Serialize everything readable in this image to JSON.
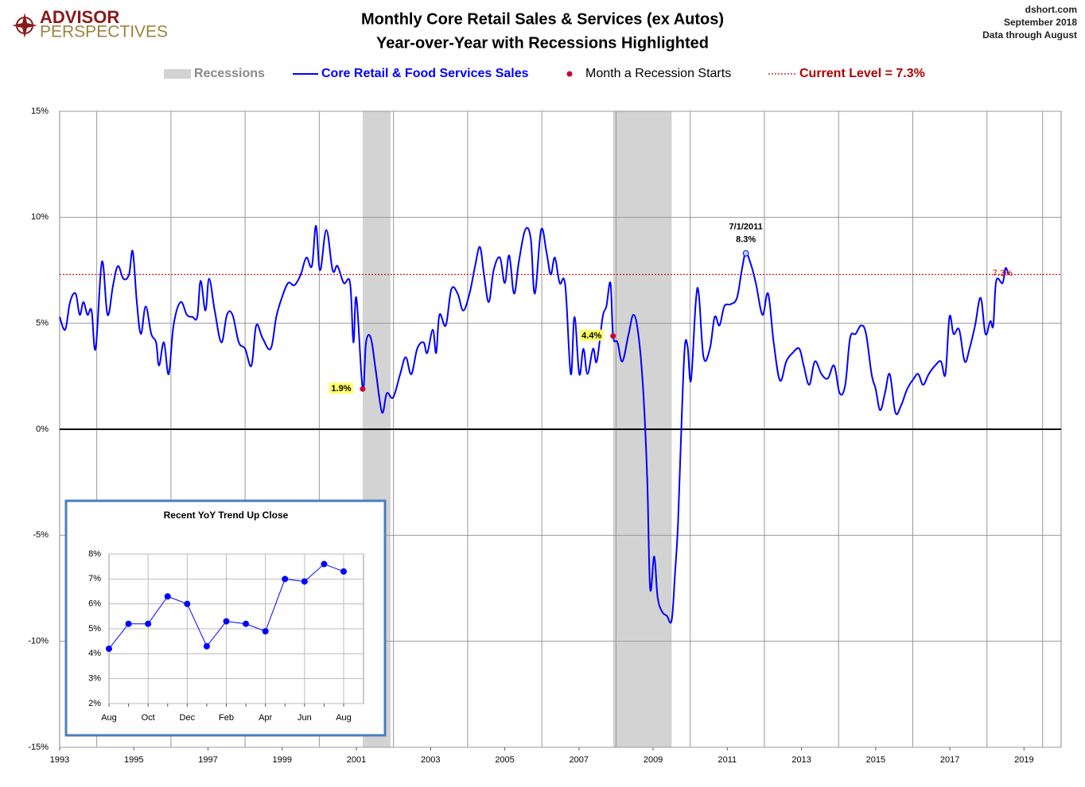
{
  "header": {
    "logo_top": "ADVISOR",
    "logo_bottom": "PERSPECTIVES",
    "source": [
      "dshort.com",
      "September 2018",
      "Data through August"
    ]
  },
  "chart_data": [
    {
      "type": "line",
      "title": "Monthly Core Retail Sales & Services (ex Autos)",
      "subtitle": "Year-over-Year with Recessions Highlighted",
      "x": [
        1993.0,
        1993.15,
        1993.28,
        1993.43,
        1993.54,
        1993.64,
        1993.75,
        1993.86,
        1993.97,
        1994.14,
        1994.29,
        1994.44,
        1994.57,
        1994.72,
        1994.87,
        1994.97,
        1995.08,
        1995.19,
        1995.32,
        1995.47,
        1995.6,
        1995.68,
        1995.81,
        1995.94,
        1996.07,
        1996.26,
        1996.43,
        1996.58,
        1996.71,
        1996.8,
        1996.93,
        1997.03,
        1997.18,
        1997.36,
        1997.51,
        1997.66,
        1997.83,
        1998.0,
        1998.17,
        1998.3,
        1998.47,
        1998.69,
        1998.84,
        1998.99,
        1999.16,
        1999.33,
        1999.5,
        1999.65,
        1999.8,
        1999.91,
        2000.02,
        2000.19,
        2000.36,
        2000.49,
        2000.66,
        2000.83,
        2000.92,
        2001.0,
        2001.17,
        2001.26,
        2001.39,
        2001.52,
        2001.69,
        2001.82,
        2001.99,
        2002.18,
        2002.33,
        2002.48,
        2002.64,
        2002.81,
        2002.91,
        2003.06,
        2003.15,
        2003.24,
        2003.41,
        2003.56,
        2003.73,
        2003.88,
        2004.05,
        2004.2,
        2004.33,
        2004.44,
        2004.57,
        2004.7,
        2004.87,
        2005.0,
        2005.12,
        2005.25,
        2005.38,
        2005.55,
        2005.7,
        2005.81,
        2005.98,
        2006.13,
        2006.24,
        2006.35,
        2006.48,
        2006.63,
        2006.78,
        2006.88,
        2007.01,
        2007.12,
        2007.23,
        2007.38,
        2007.48,
        2007.64,
        2007.74,
        2007.85,
        2007.92,
        2008.04,
        2008.17,
        2008.34,
        2008.47,
        2008.6,
        2008.73,
        2008.84,
        2008.92,
        2009.03,
        2009.12,
        2009.24,
        2009.37,
        2009.5,
        2009.59,
        2009.67,
        2009.76,
        2009.85,
        2009.93,
        2010.02,
        2010.15,
        2010.23,
        2010.36,
        2010.53,
        2010.66,
        2010.79,
        2010.92,
        2011.09,
        2011.26,
        2011.39,
        2011.5,
        2011.65,
        2011.78,
        2011.95,
        2012.1,
        2012.25,
        2012.42,
        2012.59,
        2012.76,
        2012.94,
        2013.06,
        2013.21,
        2013.36,
        2013.54,
        2013.71,
        2013.88,
        2014.03,
        2014.18,
        2014.31,
        2014.46,
        2014.61,
        2014.74,
        2014.89,
        2015.0,
        2015.12,
        2015.25,
        2015.38,
        2015.53,
        2015.68,
        2015.85,
        2016.03,
        2016.15,
        2016.28,
        2016.43,
        2016.6,
        2016.76,
        2016.88,
        2016.99,
        2017.1,
        2017.25,
        2017.4,
        2017.53,
        2017.68,
        2017.83,
        2017.96,
        2018.09,
        2018.17,
        2018.25,
        2018.42,
        2018.5,
        2018.58
      ],
      "series": [
        {
          "name": "Core Retail & Food Services Sales",
          "color": "#0000ff",
          "values": [
            5.3,
            4.7,
            6.0,
            6.4,
            5.4,
            6.0,
            5.4,
            5.6,
            3.8,
            7.9,
            5.4,
            6.8,
            7.7,
            7.1,
            7.3,
            8.4,
            6.0,
            4.5,
            5.8,
            4.5,
            4.1,
            3.0,
            4.1,
            2.6,
            4.9,
            6.0,
            5.4,
            5.3,
            5.3,
            7.0,
            5.6,
            7.1,
            5.6,
            4.1,
            5.4,
            5.4,
            4.1,
            3.8,
            3.0,
            4.9,
            4.3,
            3.8,
            5.3,
            6.2,
            6.9,
            6.8,
            7.3,
            8.1,
            7.7,
            9.6,
            7.5,
            9.4,
            7.5,
            7.7,
            6.9,
            6.9,
            4.1,
            6.2,
            1.9,
            4.1,
            4.3,
            2.8,
            0.8,
            1.7,
            1.5,
            2.6,
            3.4,
            2.6,
            3.8,
            4.1,
            3.6,
            4.7,
            3.6,
            5.4,
            4.9,
            6.6,
            6.4,
            5.6,
            6.4,
            7.7,
            8.6,
            7.3,
            6.0,
            7.5,
            8.1,
            6.9,
            8.2,
            6.4,
            7.9,
            9.4,
            9.0,
            6.4,
            9.4,
            8.3,
            7.3,
            8.1,
            6.9,
            6.8,
            2.6,
            5.3,
            2.6,
            3.8,
            2.6,
            3.8,
            3.2,
            5.3,
            5.8,
            6.9,
            4.4,
            4.1,
            3.2,
            4.5,
            5.4,
            4.5,
            1.9,
            -2.3,
            -7.5,
            -6.0,
            -7.9,
            -8.6,
            -8.8,
            -9.0,
            -6.8,
            -4.5,
            0.0,
            3.8,
            3.9,
            2.3,
            6.0,
            6.4,
            3.4,
            3.8,
            5.3,
            4.9,
            5.8,
            5.9,
            6.2,
            7.5,
            8.3,
            7.7,
            6.8,
            5.4,
            6.4,
            4.1,
            2.3,
            3.2,
            3.6,
            3.8,
            3.0,
            2.1,
            3.2,
            2.6,
            2.4,
            3.0,
            1.7,
            2.1,
            4.3,
            4.5,
            4.9,
            4.5,
            2.6,
            1.9,
            0.9,
            1.7,
            2.6,
            0.8,
            1.1,
            1.9,
            2.4,
            2.6,
            2.1,
            2.6,
            3.0,
            3.2,
            2.6,
            5.3,
            4.5,
            4.7,
            3.2,
            3.8,
            4.9,
            6.2,
            4.5,
            5.1,
            4.9,
            7.0,
            6.9,
            7.6,
            7.3
          ]
        }
      ],
      "recessions": {
        "name": "Recessions",
        "color": "#d3d3d3",
        "spans": [
          [
            2001.17,
            2001.92
          ],
          [
            2007.92,
            2009.5
          ]
        ]
      },
      "recession_starts": {
        "name": "Month a Recession Starts",
        "color": "#cc0033",
        "x": [
          2001.17,
          2007.92
        ],
        "values": [
          1.9,
          4.4
        ],
        "value_labels": [
          "1.9%",
          "4.4%"
        ]
      },
      "reference_line": {
        "name": "Current Level = 7.3%",
        "value": 7.3,
        "label": "7.3%",
        "color": "#cc0000"
      },
      "annotation": {
        "x": 2011.5,
        "value": 8.3,
        "label": "7/1/2011",
        "value_label": "8.3%"
      },
      "xlim": [
        1993,
        2020
      ],
      "xticks": [
        1993,
        1995,
        1997,
        1999,
        2001,
        2003,
        2005,
        2007,
        2009,
        2011,
        2013,
        2015,
        2017,
        2019
      ],
      "ylim": [
        -15,
        15
      ],
      "yticks": [
        {
          "value": -15,
          "label": "-15%"
        },
        {
          "value": -10,
          "label": "-10%"
        },
        {
          "value": -5,
          "label": "-5%"
        },
        {
          "value": 0,
          "label": "0%"
        },
        {
          "value": 5,
          "label": "5%"
        },
        {
          "value": 10,
          "label": "10%"
        },
        {
          "value": 15,
          "label": "15%"
        }
      ],
      "grid": true
    },
    {
      "type": "line",
      "title": "Recent  YoY Trend Up Close",
      "categories": [
        "Aug",
        null,
        "Oct",
        null,
        "Dec",
        null,
        "Feb",
        null,
        "Apr",
        null,
        "Jun",
        null,
        "Aug"
      ],
      "values": [
        4.2,
        5.2,
        5.2,
        6.3,
        6.0,
        4.3,
        5.3,
        5.2,
        4.9,
        7.0,
        6.9,
        7.6,
        7.3
      ],
      "color": "#0000ff",
      "ylim": [
        2,
        8
      ],
      "yticks": [
        {
          "value": 2,
          "label": "2%"
        },
        {
          "value": 3,
          "label": "3%"
        },
        {
          "value": 4,
          "label": "4%"
        },
        {
          "value": 5,
          "label": "5%"
        },
        {
          "value": 6,
          "label": "6%"
        },
        {
          "value": 7,
          "label": "7%"
        },
        {
          "value": 8,
          "label": "8%"
        }
      ],
      "grid": true
    }
  ]
}
